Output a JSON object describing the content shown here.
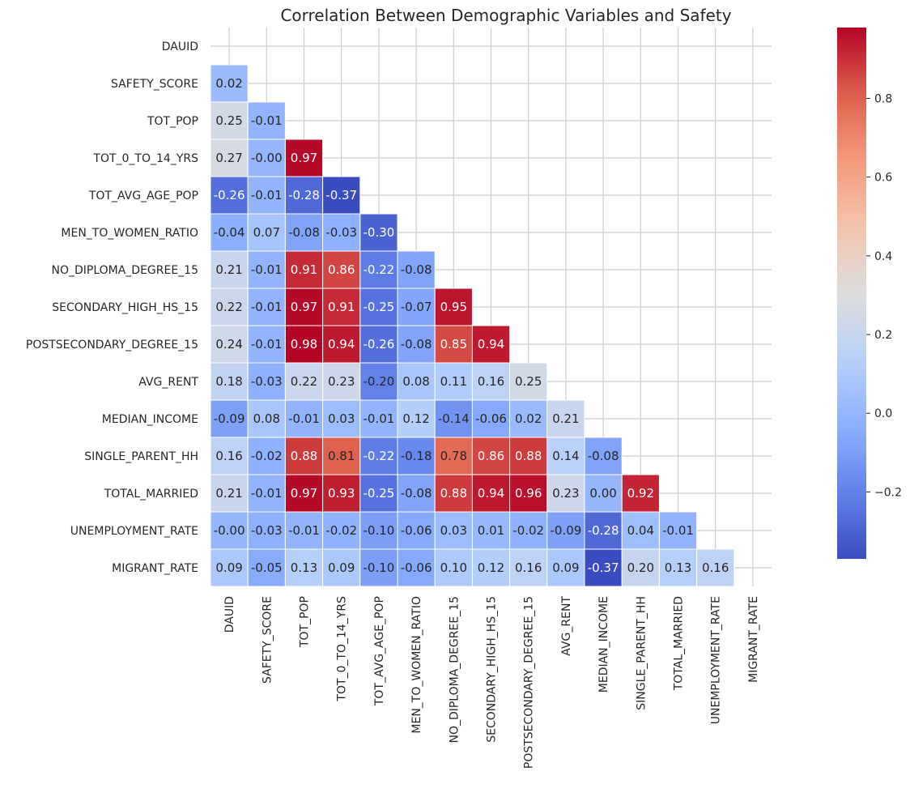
{
  "chart_data": {
    "type": "heatmap",
    "title": "Correlation Between Demographic Variables and Safety",
    "xlabel": "",
    "ylabel": "",
    "variables": [
      "DAUID",
      "SAFETY_SCORE",
      "TOT_POP",
      "TOT_0_TO_14_YRS",
      "TOT_AVG_AGE_POP",
      "MEN_TO_WOMEN_RATIO",
      "NO_DIPLOMA_DEGREE_15",
      "SECONDARY_HIGH_HS_15",
      "POSTSECONDARY_DEGREE_15",
      "AVG_RENT",
      "MEDIAN_INCOME",
      "SINGLE_PARENT_HH",
      "TOTAL_MARRIED",
      "UNEMPLOYMENT_RATE",
      "MIGRANT_RATE"
    ],
    "lower_triangle_values": [
      [],
      [
        0.02
      ],
      [
        0.25,
        -0.01
      ],
      [
        0.27,
        -0.0,
        0.97
      ],
      [
        -0.26,
        -0.01,
        -0.28,
        -0.37
      ],
      [
        -0.04,
        0.07,
        -0.08,
        -0.03,
        -0.3
      ],
      [
        0.21,
        -0.01,
        0.91,
        0.86,
        -0.22,
        -0.08
      ],
      [
        0.22,
        -0.01,
        0.97,
        0.91,
        -0.25,
        -0.07,
        0.95
      ],
      [
        0.24,
        -0.01,
        0.98,
        0.94,
        -0.26,
        -0.08,
        0.85,
        0.94
      ],
      [
        0.18,
        -0.03,
        0.22,
        0.23,
        -0.2,
        0.08,
        0.11,
        0.16,
        0.25
      ],
      [
        -0.09,
        0.08,
        -0.01,
        0.03,
        -0.01,
        0.12,
        -0.14,
        -0.06,
        0.02,
        0.21
      ],
      [
        0.16,
        -0.02,
        0.88,
        0.81,
        -0.22,
        -0.18,
        0.78,
        0.86,
        0.88,
        0.14,
        -0.08
      ],
      [
        0.21,
        -0.01,
        0.97,
        0.93,
        -0.25,
        -0.08,
        0.88,
        0.94,
        0.96,
        0.23,
        0.0,
        0.92
      ],
      [
        -0.0,
        -0.03,
        -0.01,
        -0.02,
        -0.1,
        -0.06,
        0.03,
        0.01,
        -0.02,
        -0.09,
        -0.28,
        0.04,
        -0.01
      ],
      [
        0.09,
        -0.05,
        0.13,
        0.09,
        -0.1,
        -0.06,
        0.1,
        0.12,
        0.16,
        0.09,
        -0.37,
        0.2,
        0.13,
        0.16
      ]
    ],
    "value_labels": [
      [],
      [
        "0.02"
      ],
      [
        "0.25",
        "-0.01"
      ],
      [
        "0.27",
        "-0.00",
        "0.97"
      ],
      [
        "-0.26",
        "-0.01",
        "-0.28",
        "-0.37"
      ],
      [
        "-0.04",
        "0.07",
        "-0.08",
        "-0.03",
        "-0.30"
      ],
      [
        "0.21",
        "-0.01",
        "0.91",
        "0.86",
        "-0.22",
        "-0.08"
      ],
      [
        "0.22",
        "-0.01",
        "0.97",
        "0.91",
        "-0.25",
        "-0.07",
        "0.95"
      ],
      [
        "0.24",
        "-0.01",
        "0.98",
        "0.94",
        "-0.26",
        "-0.08",
        "0.85",
        "0.94"
      ],
      [
        "0.18",
        "-0.03",
        "0.22",
        "0.23",
        "-0.20",
        "0.08",
        "0.11",
        "0.16",
        "0.25"
      ],
      [
        "-0.09",
        "0.08",
        "-0.01",
        "0.03",
        "-0.01",
        "0.12",
        "-0.14",
        "-0.06",
        "0.02",
        "0.21"
      ],
      [
        "0.16",
        "-0.02",
        "0.88",
        "0.81",
        "-0.22",
        "-0.18",
        "0.78",
        "0.86",
        "0.88",
        "0.14",
        "-0.08"
      ],
      [
        "0.21",
        "-0.01",
        "0.97",
        "0.93",
        "-0.25",
        "-0.08",
        "0.88",
        "0.94",
        "0.96",
        "0.23",
        "0.00",
        "0.92"
      ],
      [
        "-0.00",
        "-0.03",
        "-0.01",
        "-0.02",
        "-0.10",
        "-0.06",
        "0.03",
        "0.01",
        "-0.02",
        "-0.09",
        "-0.28",
        "0.04",
        "-0.01"
      ],
      [
        "0.09",
        "-0.05",
        "0.13",
        "0.09",
        "-0.10",
        "-0.06",
        "0.10",
        "0.12",
        "0.16",
        "0.09",
        "-0.37",
        "0.20",
        "0.13",
        "0.16"
      ]
    ],
    "colormap": "coolwarm",
    "color_range": [
      -0.37,
      0.98
    ],
    "colorbar_ticks": [
      -0.2,
      0.0,
      0.2,
      0.4,
      0.6,
      0.8
    ],
    "colorbar_tick_labels": [
      "−0.2",
      "0.0",
      "0.2",
      "0.4",
      "0.6",
      "0.8"
    ],
    "mask": "upper triangle and diagonal",
    "grid": true
  }
}
